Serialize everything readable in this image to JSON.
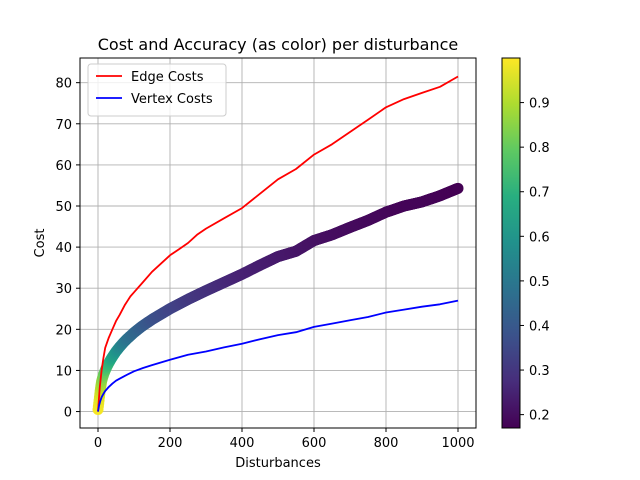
{
  "chart_data": {
    "type": "line",
    "title": "Cost and Accuracy (as color) per disturbance",
    "xlabel": "Disturbances",
    "ylabel": "Cost",
    "xlim": [
      -50,
      1050
    ],
    "ylim": [
      -4,
      86
    ],
    "xticks": [
      0,
      200,
      400,
      600,
      800,
      1000
    ],
    "yticks": [
      0,
      10,
      20,
      30,
      40,
      50,
      60,
      70,
      80
    ],
    "grid": true,
    "legend_position": "upper-left",
    "series": [
      {
        "name": "Edge Costs",
        "color": "#ff0000",
        "x": [
          0,
          5,
          10,
          15,
          20,
          30,
          40,
          50,
          60,
          75,
          90,
          100,
          125,
          150,
          175,
          200,
          225,
          250,
          275,
          300,
          350,
          400,
          450,
          500,
          550,
          600,
          650,
          700,
          750,
          800,
          850,
          900,
          950,
          1000
        ],
        "y": [
          0,
          6,
          10,
          13,
          15.5,
          18,
          20,
          22,
          23.5,
          26,
          28,
          29,
          31.5,
          34,
          36,
          38,
          39.5,
          41,
          43,
          44.5,
          47,
          49.5,
          53,
          56.5,
          59,
          62.5,
          65,
          68,
          71,
          74,
          76,
          77.5,
          79,
          81.5
        ]
      },
      {
        "name": "Vertex Costs",
        "color": "#0000ff",
        "x": [
          0,
          3,
          6,
          10,
          15,
          20,
          30,
          40,
          50,
          60,
          75,
          100,
          125,
          150,
          200,
          250,
          300,
          350,
          400,
          450,
          500,
          550,
          600,
          650,
          700,
          750,
          800,
          850,
          900,
          950,
          1000
        ],
        "y": [
          0,
          1.5,
          2.5,
          3.5,
          4.3,
          5,
          6,
          6.8,
          7.5,
          8,
          8.7,
          9.8,
          10.6,
          11.3,
          12.6,
          13.8,
          14.6,
          15.6,
          16.5,
          17.6,
          18.6,
          19.3,
          20.6,
          21.4,
          22.2,
          23,
          24.1,
          24.8,
          25.5,
          26.1,
          27
        ]
      },
      {
        "type": "scatter",
        "x": [
          0,
          2,
          4,
          6,
          8,
          10,
          13,
          16,
          20,
          25,
          30,
          35,
          40,
          50,
          60,
          70,
          80,
          100,
          120,
          150,
          200,
          250,
          300,
          350,
          400,
          450,
          500,
          550,
          600,
          650,
          700,
          750,
          800,
          850,
          900,
          950,
          1000
        ],
        "y": [
          0.5,
          2,
          3.5,
          5,
          6.2,
          7.3,
          8.3,
          9.1,
          10,
          11,
          11.8,
          12.6,
          13.3,
          14.6,
          15.7,
          16.7,
          17.6,
          19.2,
          20.6,
          22.4,
          25,
          27.3,
          29.4,
          31.4,
          33.4,
          35.6,
          37.7,
          39,
          41.6,
          43,
          44.8,
          46.5,
          48.5,
          50,
          51,
          52.5,
          54.3
        ],
        "accuracy": [
          0.99,
          0.98,
          0.96,
          0.93,
          0.9,
          0.87,
          0.84,
          0.81,
          0.78,
          0.74,
          0.71,
          0.68,
          0.65,
          0.6,
          0.56,
          0.52,
          0.49,
          0.45,
          0.42,
          0.38,
          0.34,
          0.31,
          0.29,
          0.27,
          0.25,
          0.24,
          0.23,
          0.22,
          0.21,
          0.2,
          0.195,
          0.19,
          0.185,
          0.18,
          0.18,
          0.175,
          0.17
        ]
      }
    ],
    "colorbar": {
      "colormap": "viridis",
      "range": [
        0.17,
        1.0
      ],
      "ticks": [
        0.2,
        0.3,
        0.4,
        0.5,
        0.6,
        0.7,
        0.8,
        0.9
      ],
      "position": "right"
    }
  }
}
